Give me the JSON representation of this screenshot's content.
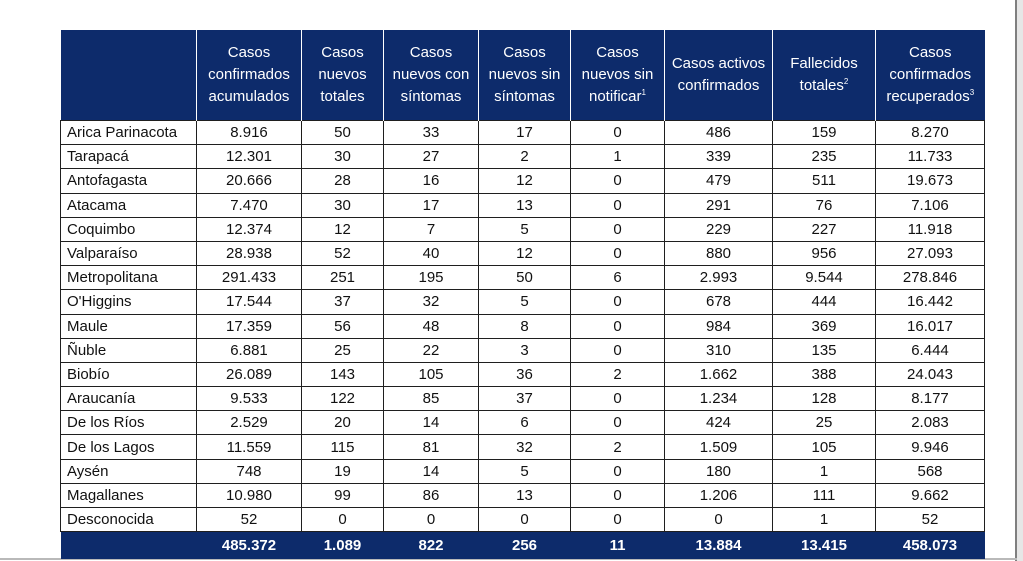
{
  "table": {
    "headers": [
      "",
      "Casos confirmados acumulados",
      "Casos nuevos totales",
      "Casos nuevos con síntomas",
      "Casos nuevos sin síntomas",
      "Casos nuevos sin notificar",
      "Casos activos confirmados",
      "Fallecidos totales",
      "Casos confirmados recuperados"
    ],
    "header_footnotes": [
      "",
      "",
      "",
      "",
      "",
      "1",
      "",
      "2",
      "3"
    ],
    "rows": [
      [
        "Arica Parinacota",
        "8.916",
        "50",
        "33",
        "17",
        "0",
        "486",
        "159",
        "8.270"
      ],
      [
        "Tarapacá",
        "12.301",
        "30",
        "27",
        "2",
        "1",
        "339",
        "235",
        "11.733"
      ],
      [
        "Antofagasta",
        "20.666",
        "28",
        "16",
        "12",
        "0",
        "479",
        "511",
        "19.673"
      ],
      [
        "Atacama",
        "7.470",
        "30",
        "17",
        "13",
        "0",
        "291",
        "76",
        "7.106"
      ],
      [
        "Coquimbo",
        "12.374",
        "12",
        "7",
        "5",
        "0",
        "229",
        "227",
        "11.918"
      ],
      [
        "Valparaíso",
        "28.938",
        "52",
        "40",
        "12",
        "0",
        "880",
        "956",
        "27.093"
      ],
      [
        "Metropolitana",
        "291.433",
        "251",
        "195",
        "50",
        "6",
        "2.993",
        "9.544",
        "278.846"
      ],
      [
        "O'Higgins",
        "17.544",
        "37",
        "32",
        "5",
        "0",
        "678",
        "444",
        "16.442"
      ],
      [
        "Maule",
        "17.359",
        "56",
        "48",
        "8",
        "0",
        "984",
        "369",
        "16.017"
      ],
      [
        "Ñuble",
        "6.881",
        "25",
        "22",
        "3",
        "0",
        "310",
        "135",
        "6.444"
      ],
      [
        "Biobío",
        "26.089",
        "143",
        "105",
        "36",
        "2",
        "1.662",
        "388",
        "24.043"
      ],
      [
        "Araucanía",
        "9.533",
        "122",
        "85",
        "37",
        "0",
        "1.234",
        "128",
        "8.177"
      ],
      [
        "De los Ríos",
        "2.529",
        "20",
        "14",
        "6",
        "0",
        "424",
        "25",
        "2.083"
      ],
      [
        "De los Lagos",
        "11.559",
        "115",
        "81",
        "32",
        "2",
        "1.509",
        "105",
        "9.946"
      ],
      [
        "Aysén",
        "748",
        "19",
        "14",
        "5",
        "0",
        "180",
        "1",
        "568"
      ],
      [
        "Magallanes",
        "10.980",
        "99",
        "86",
        "13",
        "0",
        "1.206",
        "111",
        "9.662"
      ],
      [
        "Desconocida",
        "52",
        "0",
        "0",
        "0",
        "0",
        "0",
        "1",
        "52"
      ]
    ],
    "totals": [
      "",
      "485.372",
      "1.089",
      "822",
      "256",
      "11",
      "13.884",
      "13.415",
      "458.073"
    ]
  },
  "colors": {
    "header_bg": "#0d2b6b",
    "header_text": "#ffffff",
    "grid_line": "#1f1f1f"
  }
}
